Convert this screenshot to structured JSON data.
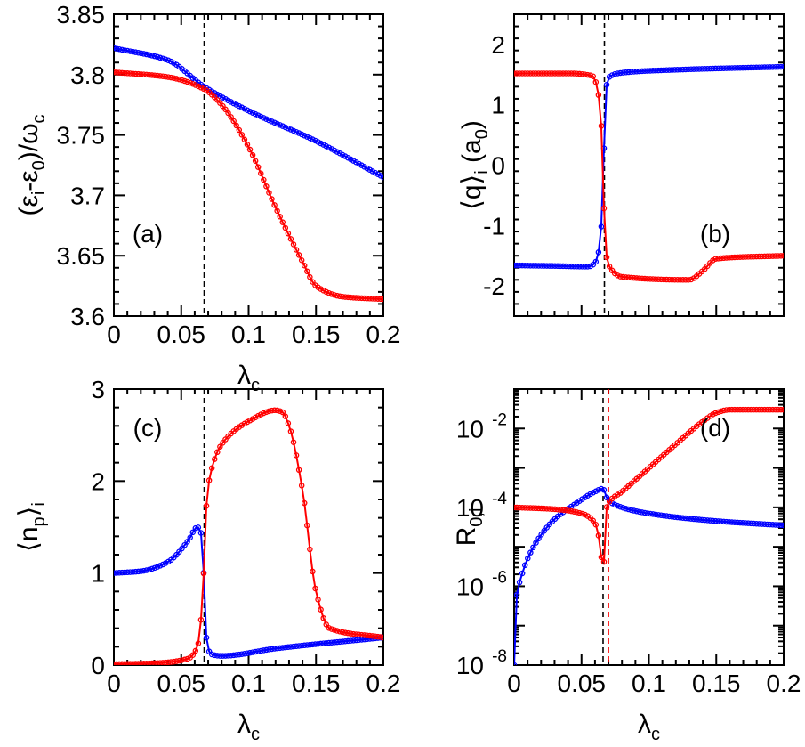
{
  "chart_data": [
    {
      "type": "line",
      "panel": "a",
      "panel_label": "(a)",
      "xlabel": "λc",
      "ylabel": "(εi-ε0)/ωc",
      "xlim": [
        0,
        0.2
      ],
      "ylim": [
        3.6,
        3.85
      ],
      "xticks": [
        0,
        0.05,
        0.1,
        0.15,
        0.2
      ],
      "xtick_labels": [
        "0",
        "0.05",
        "0.1",
        "0.15",
        "0.2"
      ],
      "yticks": [
        3.6,
        3.65,
        3.7,
        3.75,
        3.8,
        3.85
      ],
      "ytick_labels": [
        "3.6",
        "3.65",
        "3.7",
        "3.75",
        "3.8",
        "3.85"
      ],
      "vlines": [
        {
          "x": 0.067,
          "color": "#000000"
        }
      ],
      "series": [
        {
          "color": "#0000ff",
          "x": [
            0,
            0.04,
            0.067,
            0.1,
            0.15,
            0.2
          ],
          "y": [
            3.822,
            3.812,
            3.79,
            3.77,
            3.745,
            3.715
          ]
        },
        {
          "color": "#ff0000",
          "x": [
            0,
            0.04,
            0.067,
            0.08,
            0.1,
            0.12,
            0.14,
            0.15,
            0.17,
            0.2
          ],
          "y": [
            3.802,
            3.798,
            3.788,
            3.775,
            3.74,
            3.69,
            3.645,
            3.625,
            3.616,
            3.614
          ]
        }
      ]
    },
    {
      "type": "line",
      "panel": "b",
      "panel_label": "(b)",
      "xlabel": "",
      "ylabel": "⟨q⟩i (a0)",
      "xlim": [
        0,
        0.2
      ],
      "ylim": [
        -2.5,
        2.5
      ],
      "xticks": [
        0,
        0.05,
        0.1,
        0.15,
        0.2
      ],
      "xtick_labels": [],
      "yticks": [
        -2,
        -1,
        0,
        1,
        2
      ],
      "ytick_labels": [
        "-2",
        "-1",
        "0",
        "1",
        "2"
      ],
      "vlines": [
        {
          "x": 0.067,
          "color": "#000000"
        }
      ],
      "series": [
        {
          "color": "#0000ff",
          "x": [
            0,
            0.03,
            0.055,
            0.06,
            0.063,
            0.065,
            0.066,
            0.067,
            0.068,
            0.07,
            0.08,
            0.12,
            0.2
          ],
          "y": [
            -1.66,
            -1.67,
            -1.68,
            -1.62,
            -1.4,
            -0.9,
            -0.4,
            0.6,
            1.2,
            1.45,
            1.53,
            1.58,
            1.63
          ]
        },
        {
          "color": "#ff0000",
          "x": [
            0,
            0.04,
            0.058,
            0.061,
            0.063,
            0.065,
            0.066,
            0.067,
            0.068,
            0.07,
            0.08,
            0.13,
            0.14,
            0.15,
            0.2
          ],
          "y": [
            1.52,
            1.52,
            1.48,
            1.35,
            1.1,
            0.5,
            -0.3,
            -0.9,
            -1.4,
            -1.65,
            -1.85,
            -1.9,
            -1.75,
            -1.55,
            -1.5
          ]
        }
      ]
    },
    {
      "type": "line",
      "panel": "c",
      "panel_label": "(c)",
      "xlabel": "λc",
      "ylabel": "⟨np⟩i",
      "xlim": [
        0,
        0.2
      ],
      "ylim": [
        0,
        3
      ],
      "xticks": [
        0,
        0.05,
        0.1,
        0.15,
        0.2
      ],
      "xtick_labels": [
        "0",
        "0.05",
        "0.1",
        "0.15",
        "0.2"
      ],
      "yticks": [
        0,
        1,
        2,
        3
      ],
      "ytick_labels": [
        "0",
        "1",
        "2",
        "3"
      ],
      "vlines": [
        {
          "x": 0.067,
          "color": "#000000"
        }
      ],
      "series": [
        {
          "color": "#0000ff",
          "x": [
            0,
            0.02,
            0.04,
            0.055,
            0.062,
            0.065,
            0.067,
            0.069,
            0.072,
            0.08,
            0.12,
            0.2
          ],
          "y": [
            1.0,
            1.02,
            1.12,
            1.35,
            1.5,
            1.42,
            0.9,
            0.25,
            0.12,
            0.1,
            0.18,
            0.3
          ]
        },
        {
          "color": "#ff0000",
          "x": [
            0,
            0.03,
            0.055,
            0.062,
            0.065,
            0.067,
            0.069,
            0.072,
            0.08,
            0.1,
            0.12,
            0.125,
            0.13,
            0.14,
            0.15,
            0.16,
            0.2
          ],
          "y": [
            0.01,
            0.02,
            0.07,
            0.2,
            0.55,
            1.1,
            1.8,
            2.1,
            2.4,
            2.65,
            2.77,
            2.75,
            2.6,
            1.9,
            0.8,
            0.4,
            0.3
          ]
        }
      ]
    },
    {
      "type": "line",
      "panel": "d",
      "panel_label": "(d)",
      "xlabel": "λc",
      "ylabel": "R0,i",
      "yscale": "log",
      "xlim": [
        0,
        0.2
      ],
      "ylim": [
        1e-08,
        0.1
      ],
      "xticks": [
        0,
        0.05,
        0.1,
        0.15,
        0.2
      ],
      "xtick_labels": [
        "0",
        "0.05",
        "0.1",
        "0.15",
        "0.2"
      ],
      "yticks": [
        1e-08,
        1e-06,
        0.0001,
        0.01
      ],
      "ytick_labels": [
        "10",
        "10",
        "10",
        "10"
      ],
      "ytick_exponents": [
        "-8",
        "-6",
        "-4",
        "-2"
      ],
      "vlines": [
        {
          "x": 0.066,
          "color": "#000000"
        },
        {
          "x": 0.07,
          "color": "#ff0000"
        }
      ],
      "series": [
        {
          "color": "#0000ff",
          "x": [
            0,
            0.001,
            0.002,
            0.005,
            0.01,
            0.02,
            0.03,
            0.045,
            0.06,
            0.066,
            0.068,
            0.07,
            0.08,
            0.1,
            0.15,
            0.2
          ],
          "y": [
            1e-08,
            2e-07,
            6e-07,
            1.6e-06,
            5e-06,
            2e-05,
            5e-05,
            0.00012,
            0.00025,
            0.0003,
            0.0002,
            0.00015,
            0.0001,
            7e-05,
            4.5e-05,
            3.5e-05
          ]
        },
        {
          "color": "#ff0000",
          "x": [
            0,
            0.03,
            0.05,
            0.06,
            0.064,
            0.066,
            0.068,
            0.07,
            0.08,
            0.1,
            0.12,
            0.14,
            0.15,
            0.16,
            0.2
          ],
          "y": [
            0.0001,
            9e-05,
            7e-05,
            4e-05,
            1e-05,
            1.6e-06,
            8e-05,
            0.00013,
            0.00025,
            0.001,
            0.004,
            0.015,
            0.025,
            0.03,
            0.03
          ]
        }
      ]
    }
  ]
}
